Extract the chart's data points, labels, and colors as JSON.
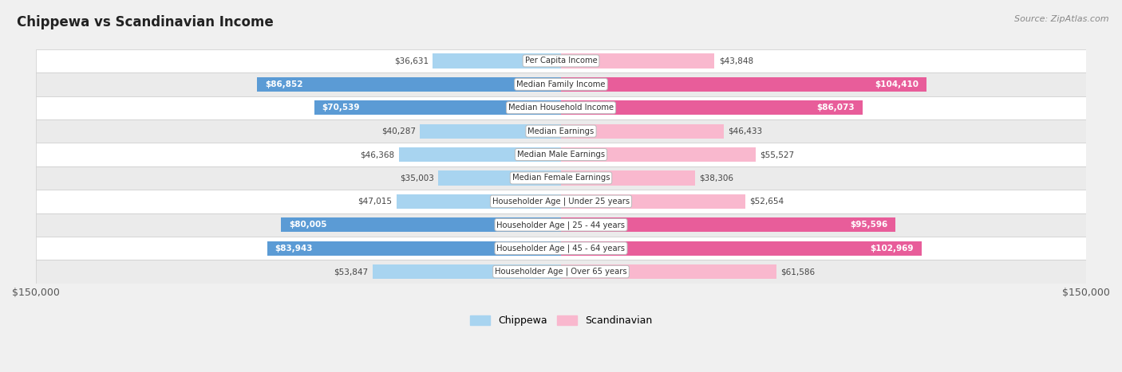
{
  "title": "Chippewa vs Scandinavian Income",
  "source": "Source: ZipAtlas.com",
  "categories": [
    "Per Capita Income",
    "Median Family Income",
    "Median Household Income",
    "Median Earnings",
    "Median Male Earnings",
    "Median Female Earnings",
    "Householder Age | Under 25 years",
    "Householder Age | 25 - 44 years",
    "Householder Age | 45 - 64 years",
    "Householder Age | Over 65 years"
  ],
  "chippewa": [
    36631,
    86852,
    70539,
    40287,
    46368,
    35003,
    47015,
    80005,
    83943,
    53847
  ],
  "scandinavian": [
    43848,
    104410,
    86073,
    46433,
    55527,
    38306,
    52654,
    95596,
    102969,
    61586
  ],
  "chippewa_light": "#a8d4f0",
  "chippewa_dark": "#5b9bd5",
  "scandinavian_light": "#f9b8ce",
  "scandinavian_dark": "#e85d9a",
  "dark_threshold": 65000,
  "max_val": 150000,
  "bg_color": "#f0f0f0",
  "row_colors": [
    "#ffffff",
    "#ebebeb"
  ]
}
